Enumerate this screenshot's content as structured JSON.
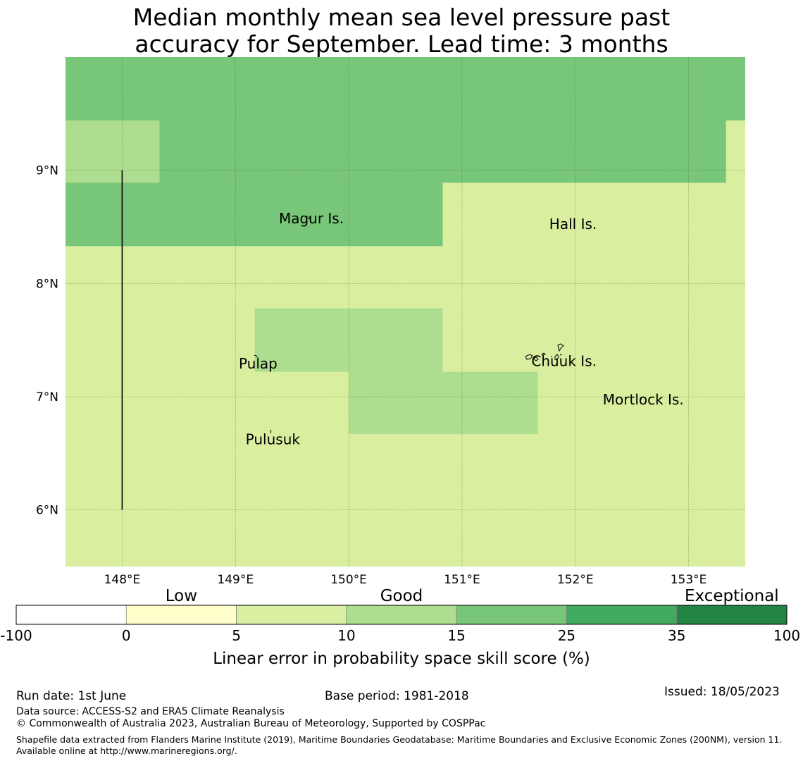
{
  "title": {
    "line1": "Median monthly mean sea level pressure past",
    "line2": "accuracy for September. Lead time: 3 months"
  },
  "map": {
    "lon_range": [
      147.5,
      153.5
    ],
    "lat_range": [
      5.5,
      10.0
    ],
    "lon_ticks": [
      {
        "value": 148,
        "label": "148°E"
      },
      {
        "value": 149,
        "label": "149°E"
      },
      {
        "value": 150,
        "label": "150°E"
      },
      {
        "value": 151,
        "label": "151°E"
      },
      {
        "value": 152,
        "label": "152°E"
      },
      {
        "value": 153,
        "label": "153°E"
      }
    ],
    "lat_ticks": [
      {
        "value": 9,
        "label": "9°N"
      },
      {
        "value": 8,
        "label": "8°N"
      },
      {
        "value": 7,
        "label": "7°N"
      },
      {
        "value": 6,
        "label": "6°N"
      }
    ],
    "cells": [
      {
        "lon": [
          147.5,
          153.5
        ],
        "lat": [
          5.5,
          10.0
        ],
        "color": "#d9ef9f"
      },
      {
        "lon": [
          147.5,
          153.5
        ],
        "lat": [
          9.44,
          10.0
        ],
        "color": "#78c679"
      },
      {
        "lon": [
          148.33,
          153.33
        ],
        "lat": [
          8.89,
          9.44
        ],
        "color": "#78c679"
      },
      {
        "lon": [
          147.5,
          148.33
        ],
        "lat": [
          8.89,
          9.44
        ],
        "color": "#addd8e"
      },
      {
        "lon": [
          147.5,
          150.83
        ],
        "lat": [
          8.33,
          8.89
        ],
        "color": "#78c679"
      },
      {
        "lon": [
          149.17,
          150.83
        ],
        "lat": [
          7.22,
          7.78
        ],
        "color": "#addd8e"
      },
      {
        "lon": [
          150.0,
          151.67
        ],
        "lat": [
          6.67,
          7.22
        ],
        "color": "#addd8e"
      }
    ],
    "boundary_line": {
      "lon": 148.0,
      "lat": [
        6.0,
        9.0
      ]
    },
    "places": [
      {
        "name": "Magur Is.",
        "lon": 149.67,
        "lat": 8.53
      },
      {
        "name": "Hall Is.",
        "lon": 151.98,
        "lat": 8.48
      },
      {
        "name": "Pulap",
        "lon": 149.2,
        "lat": 7.25
      },
      {
        "name": "Chuuk Is.",
        "lon": 151.9,
        "lat": 7.27
      },
      {
        "name": "Mortlock Is.",
        "lon": 152.6,
        "lat": 6.93
      },
      {
        "name": "Pulusuk",
        "lon": 149.33,
        "lat": 6.58
      }
    ]
  },
  "colorbar": {
    "categories": [
      {
        "label": "Low",
        "position": 1.5
      },
      {
        "label": "Good",
        "position": 3.5
      },
      {
        "label": "Exceptional",
        "position": 6.5
      }
    ],
    "segments": [
      {
        "from": "-100",
        "to": "0",
        "color": "#ffffff"
      },
      {
        "from": "0",
        "to": "5",
        "color": "#ffffcc"
      },
      {
        "from": "5",
        "to": "10",
        "color": "#d9f0a3"
      },
      {
        "from": "10",
        "to": "15",
        "color": "#addd8e"
      },
      {
        "from": "15",
        "to": "25",
        "color": "#78c679"
      },
      {
        "from": "25",
        "to": "35",
        "color": "#41ab5d"
      },
      {
        "from": "35",
        "to": "100",
        "color": "#238443"
      }
    ],
    "ticks": [
      "-100",
      "0",
      "5",
      "10",
      "15",
      "25",
      "35",
      "100"
    ],
    "label": "Linear error in probability space skill score (%)"
  },
  "footer": {
    "run_date": "Run date: 1st June",
    "base_period": "Base period: 1981-2018",
    "issued": "Issued: 18/05/2023",
    "data_source": "Data source: ACCESS-S2 and ERA5 Climate Reanalysis",
    "copyright": "© Commonwealth of Australia 2023, Australian Bureau of Meteorology, Supported by COSPPac",
    "shapefile": "Shapefile data extracted from Flanders Marine Institute (2019), Maritime Boundaries Geodatabase: Maritime Boundaries and Exclusive Economic Zones (200NM), version 11. Available online at http://www.marineregions.org/."
  }
}
